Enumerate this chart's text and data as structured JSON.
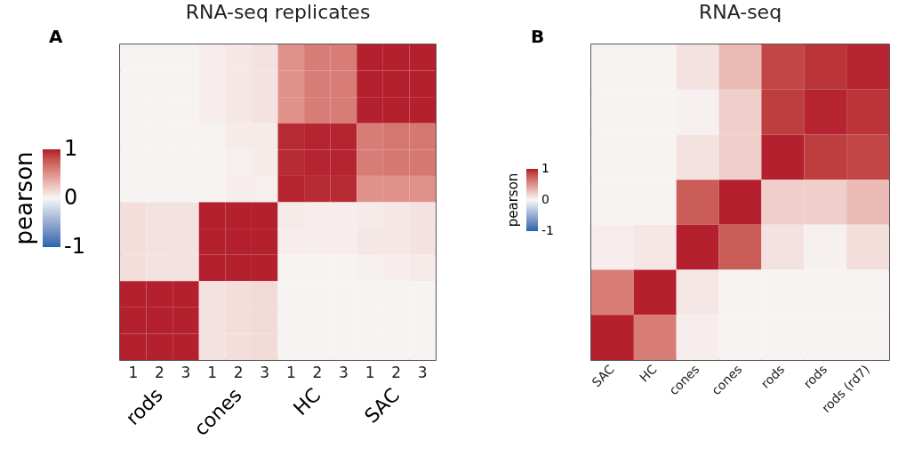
{
  "chart_data": [
    {
      "type": "heatmap",
      "title": "RNA-seq replicates",
      "categories": [
        "1",
        "2",
        "3",
        "1",
        "2",
        "3",
        "1",
        "2",
        "3",
        "1",
        "2",
        "3"
      ],
      "y_categories": [
        null,
        null,
        null,
        null,
        null,
        null,
        null,
        null,
        null,
        null,
        null,
        null
      ],
      "tick_labels": "x",
      "clim": [
        -1,
        1
      ],
      "cticks": [
        -1,
        0,
        1
      ],
      "clabel": "pearson",
      "annotations": [
        "A",
        "rods",
        "cones",
        "HC",
        "SAC"
      ],
      "cells": [
        [
          0.02,
          0.02,
          0.02,
          0.05,
          0.08,
          0.1,
          0.5,
          0.6,
          0.6,
          0.98,
          0.98,
          0.98
        ],
        [
          0.02,
          0.02,
          0.02,
          0.05,
          0.08,
          0.1,
          0.5,
          0.6,
          0.6,
          0.98,
          0.98,
          0.98
        ],
        [
          0.02,
          0.02,
          0.02,
          0.05,
          0.08,
          0.1,
          0.5,
          0.6,
          0.6,
          0.98,
          0.98,
          0.98
        ],
        [
          0.02,
          0.02,
          0.02,
          0.02,
          0.06,
          0.06,
          0.95,
          0.97,
          0.97,
          0.6,
          0.62,
          0.62
        ],
        [
          0.02,
          0.02,
          0.02,
          0.02,
          0.04,
          0.06,
          0.95,
          0.97,
          0.97,
          0.6,
          0.62,
          0.62
        ],
        [
          0.02,
          0.02,
          0.02,
          0.02,
          0.05,
          0.04,
          0.97,
          0.95,
          0.95,
          0.5,
          0.5,
          0.5
        ],
        [
          0.12,
          0.1,
          0.1,
          0.98,
          0.98,
          0.98,
          0.06,
          0.05,
          0.05,
          0.06,
          0.08,
          0.1
        ],
        [
          0.12,
          0.1,
          0.1,
          0.98,
          0.98,
          0.98,
          0.05,
          0.05,
          0.05,
          0.08,
          0.08,
          0.1
        ],
        [
          0.12,
          0.1,
          0.1,
          0.98,
          0.98,
          0.98,
          0.02,
          0.02,
          0.02,
          0.03,
          0.05,
          0.06
        ],
        [
          0.98,
          0.98,
          0.98,
          0.1,
          0.12,
          0.14,
          0.02,
          0.02,
          0.02,
          0.02,
          0.02,
          0.02
        ],
        [
          0.98,
          0.98,
          0.98,
          0.1,
          0.12,
          0.14,
          0.02,
          0.02,
          0.02,
          0.02,
          0.02,
          0.02
        ],
        [
          0.98,
          0.98,
          0.98,
          0.1,
          0.12,
          0.14,
          0.02,
          0.02,
          0.02,
          0.02,
          0.02,
          0.02
        ]
      ]
    },
    {
      "type": "heatmap",
      "title": "RNA-seq",
      "categories": [
        "SAC",
        "HC",
        "cones",
        "cones",
        "rods",
        "rods",
        "rods (rd7)"
      ],
      "y_categories": [
        null,
        null,
        null,
        null,
        null,
        null,
        null
      ],
      "tick_labels": "x",
      "clim": [
        -1,
        1
      ],
      "cticks": [
        -1,
        0,
        1
      ],
      "clabel": "pearson",
      "annotations": [
        "B"
      ],
      "cells": [
        [
          0.02,
          0.02,
          0.1,
          0.3,
          0.85,
          0.92,
          0.97
        ],
        [
          0.02,
          0.02,
          0.03,
          0.2,
          0.88,
          0.97,
          0.92
        ],
        [
          0.02,
          0.02,
          0.1,
          0.2,
          0.98,
          0.88,
          0.85
        ],
        [
          0.02,
          0.02,
          0.75,
          0.98,
          0.2,
          0.2,
          0.3
        ],
        [
          0.05,
          0.08,
          0.98,
          0.75,
          0.1,
          0.03,
          0.12
        ],
        [
          0.6,
          0.98,
          0.08,
          0.02,
          0.02,
          0.02,
          0.02
        ],
        [
          0.98,
          0.6,
          0.05,
          0.02,
          0.02,
          0.02,
          0.02
        ]
      ]
    }
  ]
}
